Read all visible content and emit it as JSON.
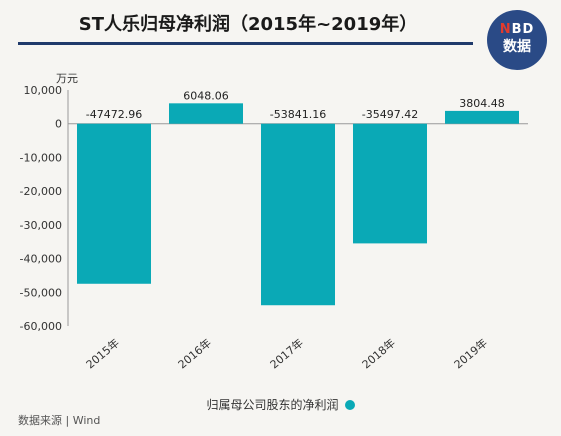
{
  "header": {
    "title": "ST人乐归母净利润（2015年~2019年）",
    "badge_top_n": "N",
    "badge_top_rest": "BD",
    "badge_bottom": "数据"
  },
  "footer": {
    "source": "数据来源 | Wind"
  },
  "colors": {
    "bar": "#0aa9b6",
    "title_rule": "#1f3a6b",
    "badge": "#2a4a86"
  },
  "chart_data": {
    "type": "bar",
    "unit_label": "万元",
    "categories": [
      "2015年",
      "2016年",
      "2017年",
      "2018年",
      "2019年"
    ],
    "series": [
      {
        "name": "归属母公司股东的净利润",
        "values": [
          -47472.96,
          6048.06,
          -53841.16,
          -35497.42,
          3804.48
        ],
        "labels": [
          "-47472.96",
          "6048.06",
          "-53841.16",
          "-35497.42",
          "3804.48"
        ]
      }
    ],
    "yticks": [
      10000,
      0,
      -10000,
      -20000,
      -30000,
      -40000,
      -50000,
      -60000
    ],
    "ytick_labels": [
      "10,000",
      "0",
      "-10,000",
      "-20,000",
      "-30,000",
      "-40,000",
      "-50,000",
      "-60,000"
    ],
    "ylim": [
      -60000,
      10000
    ],
    "legend_position": "bottom",
    "grid": false
  }
}
